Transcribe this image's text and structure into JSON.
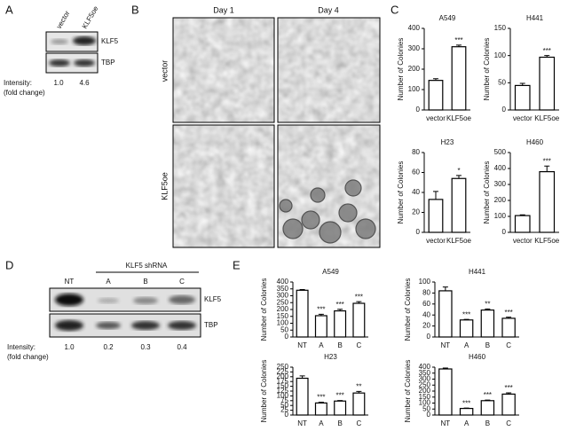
{
  "panel_labels": [
    "A",
    "B",
    "C",
    "D",
    "E"
  ],
  "blot_a": {
    "lanes": [
      "vector",
      "KLF5oe"
    ],
    "bands": [
      "KLF5",
      "TBP"
    ],
    "intensity_label": [
      "Intensity:",
      "(fold change)"
    ],
    "intensity": [
      "1.0",
      "4.6"
    ]
  },
  "micrographs": {
    "columns": [
      "Day 1",
      "Day 4"
    ],
    "rows": [
      "vector",
      "KLF5oe"
    ]
  },
  "blot_d": {
    "header": "KLF5 shRNA",
    "lanes": [
      "NT",
      "A",
      "B",
      "C"
    ],
    "bands": [
      "KLF5",
      "TBP"
    ],
    "intensity_label": [
      "Intensity:",
      "(fold change)"
    ],
    "intensity": [
      "1.0",
      "0.2",
      "0.3",
      "0.4"
    ]
  },
  "chart_data": [
    {
      "type": "bar",
      "title": "A549",
      "y_label": "Number of Colonies",
      "categories": [
        "vector",
        "KLF5oe"
      ],
      "values": [
        145,
        310
      ],
      "errors": [
        8,
        8
      ],
      "significance": [
        null,
        "***"
      ],
      "ylim": [
        0,
        400
      ],
      "yticks": [
        0,
        100,
        200,
        300,
        400
      ],
      "color": "#ffffff",
      "edgecolor": "#000000"
    },
    {
      "type": "bar",
      "title": "H441",
      "y_label": "Number of Colonies",
      "categories": [
        "vector",
        "KLF5oe"
      ],
      "values": [
        45,
        97
      ],
      "errors": [
        4,
        3
      ],
      "significance": [
        null,
        "***"
      ],
      "ylim": [
        0,
        150
      ],
      "yticks": [
        0,
        50,
        100,
        150
      ],
      "color": "#ffffff",
      "edgecolor": "#000000"
    },
    {
      "type": "bar",
      "title": "H23",
      "y_label": "Number of Colonies",
      "categories": [
        "vector",
        "KLF5oe"
      ],
      "values": [
        33,
        54
      ],
      "errors": [
        8,
        3
      ],
      "significance": [
        null,
        "*"
      ],
      "ylim": [
        0,
        80
      ],
      "yticks": [
        0,
        20,
        40,
        60,
        80
      ],
      "color": "#ffffff",
      "edgecolor": "#000000"
    },
    {
      "type": "bar",
      "title": "H460",
      "y_label": "Number of Colonies",
      "categories": [
        "vector",
        "KLF5oe"
      ],
      "values": [
        105,
        380
      ],
      "errors": [
        5,
        35
      ],
      "significance": [
        null,
        "***"
      ],
      "ylim": [
        0,
        500
      ],
      "yticks": [
        0,
        100,
        200,
        300,
        400,
        500
      ],
      "color": "#ffffff",
      "edgecolor": "#000000"
    },
    {
      "type": "bar",
      "title": "A549",
      "y_label": "Number of Colonies",
      "categories": [
        "NT",
        "A",
        "B",
        "C"
      ],
      "values": [
        340,
        155,
        190,
        245
      ],
      "errors": [
        5,
        10,
        12,
        12
      ],
      "significance": [
        null,
        "***",
        "***",
        "***"
      ],
      "ylim": [
        0,
        400
      ],
      "yticks": [
        0,
        50,
        100,
        150,
        200,
        250,
        300,
        350,
        400
      ],
      "color": "#ffffff",
      "edgecolor": "#000000"
    },
    {
      "type": "bar",
      "title": "H441",
      "y_label": "Number of Colonies",
      "categories": [
        "NT",
        "A",
        "B",
        "C"
      ],
      "values": [
        84,
        31,
        49,
        34
      ],
      "errors": [
        7,
        1,
        2,
        2
      ],
      "significance": [
        null,
        "***",
        "**",
        "***"
      ],
      "ylim": [
        0,
        100
      ],
      "yticks": [
        0,
        20,
        40,
        60,
        80,
        100
      ],
      "color": "#ffffff",
      "edgecolor": "#000000"
    },
    {
      "type": "bar",
      "title": "H23",
      "y_label": "Number of Colonies",
      "categories": [
        "NT",
        "A",
        "B",
        "C"
      ],
      "values": [
        192,
        63,
        73,
        115
      ],
      "errors": [
        12,
        4,
        3,
        8
      ],
      "significance": [
        null,
        "***",
        "***",
        "**"
      ],
      "ylim": [
        0,
        250
      ],
      "yticks": [
        0,
        25,
        50,
        75,
        100,
        125,
        150,
        175,
        200,
        225,
        250
      ],
      "color": "#ffffff",
      "edgecolor": "#000000"
    },
    {
      "type": "bar",
      "title": "H460",
      "y_label": "Number of Colonies",
      "categories": [
        "NT",
        "A",
        "B",
        "C"
      ],
      "values": [
        385,
        55,
        120,
        175
      ],
      "errors": [
        8,
        3,
        5,
        10
      ],
      "significance": [
        null,
        "***",
        "***",
        "***"
      ],
      "ylim": [
        0,
        400
      ],
      "yticks": [
        0,
        50,
        100,
        150,
        200,
        250,
        300,
        350,
        400
      ],
      "color": "#ffffff",
      "edgecolor": "#000000"
    }
  ]
}
